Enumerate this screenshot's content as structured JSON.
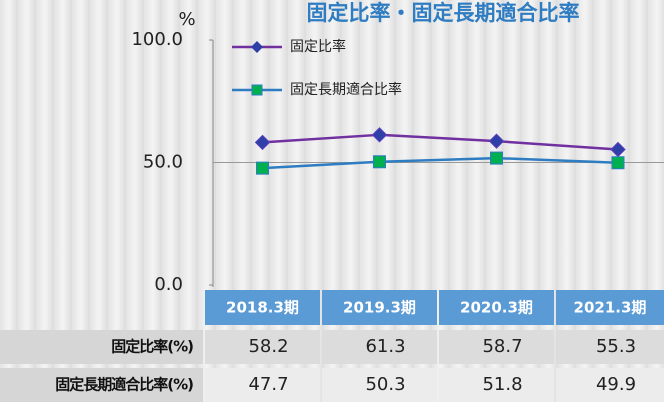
{
  "chart_data": {
    "type": "line",
    "title": "固定比率・固定長期適合比率",
    "y_label": "%",
    "categories": [
      "2018.3期",
      "2019.3期",
      "2020.3期",
      "2021.3期"
    ],
    "series": [
      {
        "name": "固定比率",
        "table_label": "固定比率(%)",
        "color": "#7030a0",
        "marker_color": "#2f3fa8",
        "marker": "diamond",
        "values": [
          58.2,
          61.3,
          58.7,
          55.3
        ]
      },
      {
        "name": "固定長期適合比率",
        "table_label": "固定長期適合比率(%)",
        "color": "#2e7cc2",
        "marker_color": "#00b050",
        "marker": "square",
        "values": [
          47.7,
          50.3,
          51.8,
          49.9
        ]
      }
    ],
    "ylim": [
      0,
      100
    ],
    "yticks": [
      {
        "value": 0,
        "label": "0.0"
      },
      {
        "value": 50,
        "label": "50.0"
      },
      {
        "value": 100,
        "label": "100.0"
      }
    ],
    "grid": true
  }
}
